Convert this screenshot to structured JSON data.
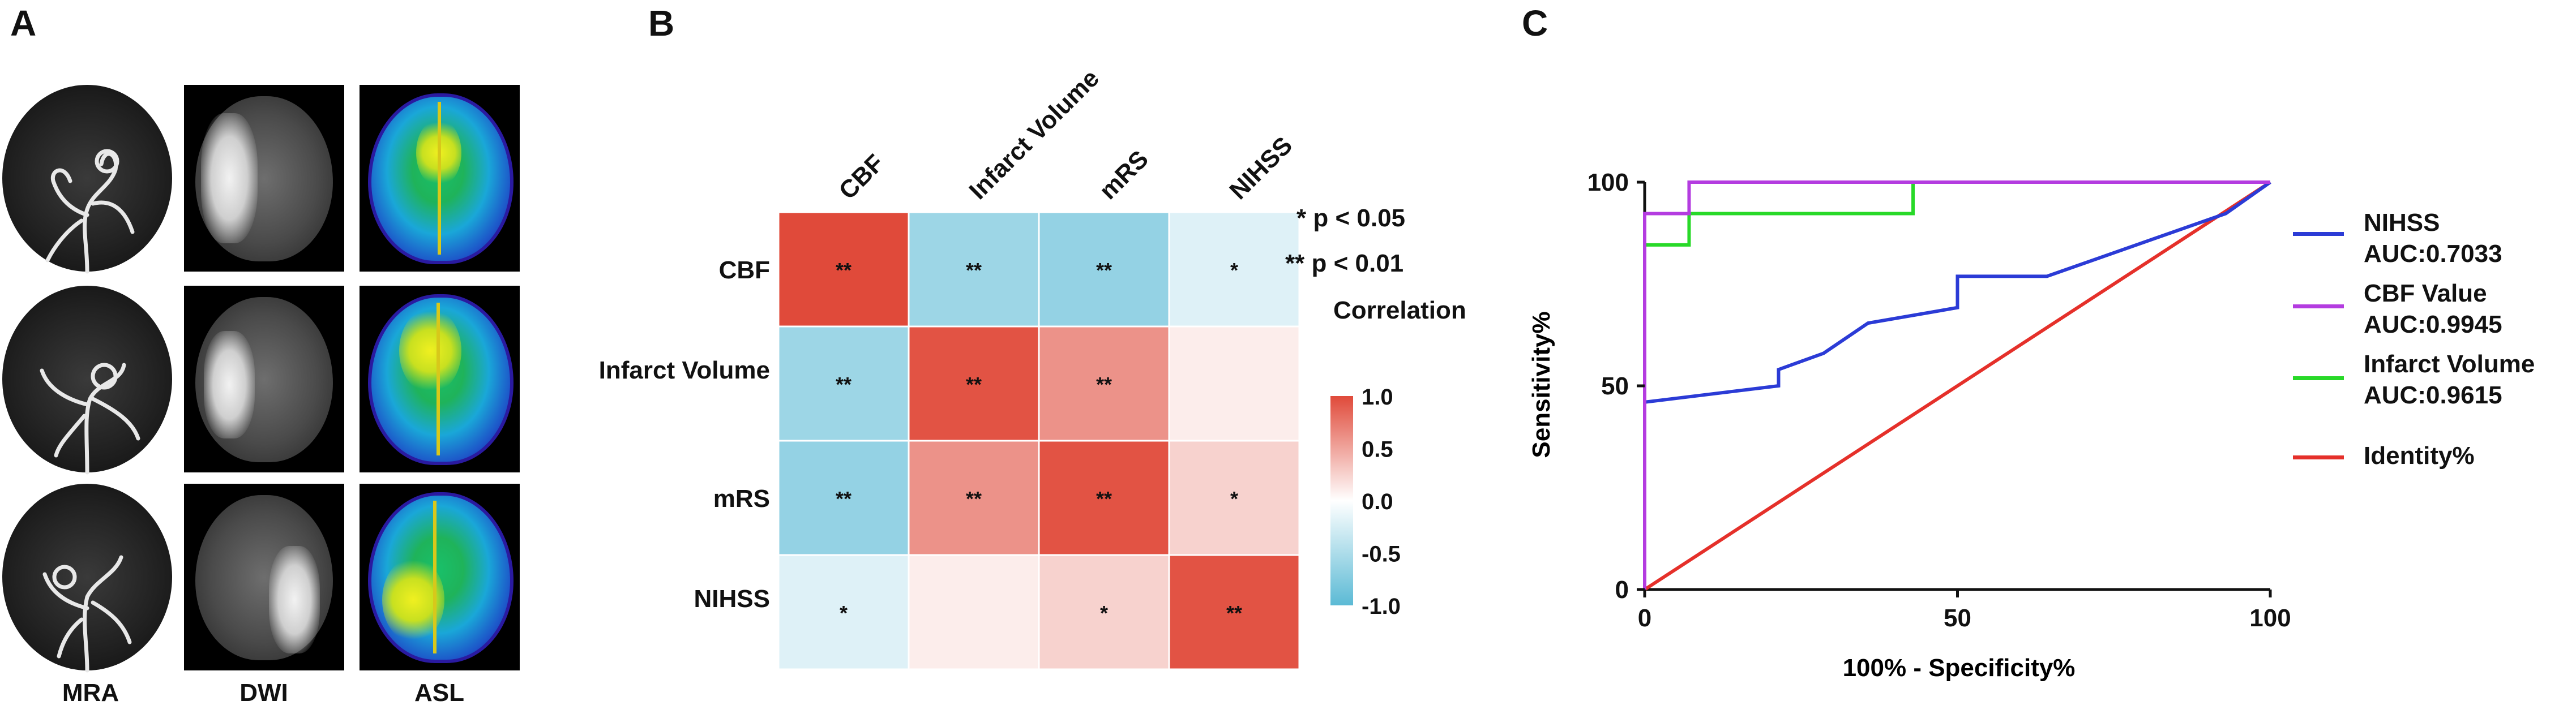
{
  "panel_a": {
    "letter": "A",
    "columns": [
      "MRA",
      "DWI",
      "ASL"
    ]
  },
  "panel_b": {
    "letter": "B",
    "legend_notes": [
      "* p < 0.05",
      "** p < 0.01",
      "Correlation"
    ],
    "colorbar_ticks": [
      "1.0",
      "0.5",
      "0.0",
      "-0.5",
      "-1.0"
    ],
    "colors": {
      "positive": "#e04a3a",
      "negative": "#5bbad5",
      "neutral": "#ffffff"
    }
  },
  "panel_c": {
    "letter": "C",
    "colors": {
      "nihss": "#2b3bd6",
      "cbf": "#b43ce0",
      "infarct": "#28d928",
      "identity": "#e5302a"
    }
  },
  "chart_data": [
    {
      "type": "heatmap",
      "title": "",
      "x_labels": [
        "CBF",
        "Infarct Volume",
        "mRS",
        "NIHSS"
      ],
      "y_labels": [
        "CBF",
        "Infarct Volume",
        "mRS",
        "NIHSS"
      ],
      "values": [
        [
          1.0,
          -0.6,
          -0.65,
          -0.2
        ],
        [
          -0.6,
          0.95,
          0.6,
          0.1
        ],
        [
          -0.65,
          0.6,
          0.95,
          0.25
        ],
        [
          -0.2,
          0.1,
          0.25,
          0.95
        ]
      ],
      "annotations": [
        [
          "**",
          "**",
          "**",
          "*"
        ],
        [
          "**",
          "**",
          "**",
          ""
        ],
        [
          "**",
          "**",
          "**",
          "*"
        ],
        [
          "*",
          "",
          "*",
          "**"
        ]
      ],
      "colorbar_range": [
        -1.0,
        1.0
      ]
    },
    {
      "type": "line",
      "title": "",
      "xlabel": "100% - Specificity%",
      "ylabel": "Sensitivity%",
      "xlim": [
        0,
        100
      ],
      "ylim": [
        0,
        100
      ],
      "xticks": [
        "0",
        "50",
        "100"
      ],
      "yticks": [
        "0",
        "50",
        "100"
      ],
      "series": [
        {
          "name": "NIHSS",
          "label": "NIHSS",
          "auc": "AUC:0.7033",
          "x": [
            0,
            0,
            21.4,
            21.4,
            28.6,
            35.7,
            50,
            50,
            64.3,
            92.9,
            100
          ],
          "y": [
            0,
            46,
            50,
            54,
            58,
            65.4,
            69.2,
            76.9,
            76.9,
            92.3,
            100
          ]
        },
        {
          "name": "CBF Value",
          "label": "CBF Value",
          "auc": "AUC:0.9945",
          "x": [
            0,
            0,
            7.1,
            7.1,
            100
          ],
          "y": [
            0,
            92.3,
            92.3,
            100,
            100
          ]
        },
        {
          "name": "Infarct Volume",
          "label": "Infarct Volume",
          "auc": "AUC:0.9615",
          "x": [
            0,
            0,
            7.1,
            7.1,
            42.9,
            42.9,
            100
          ],
          "y": [
            0,
            84.6,
            84.6,
            92.3,
            92.3,
            100,
            100
          ]
        },
        {
          "name": "Identity%",
          "label": "Identity%",
          "auc": "",
          "x": [
            0,
            100
          ],
          "y": [
            0,
            100
          ]
        }
      ]
    }
  ]
}
